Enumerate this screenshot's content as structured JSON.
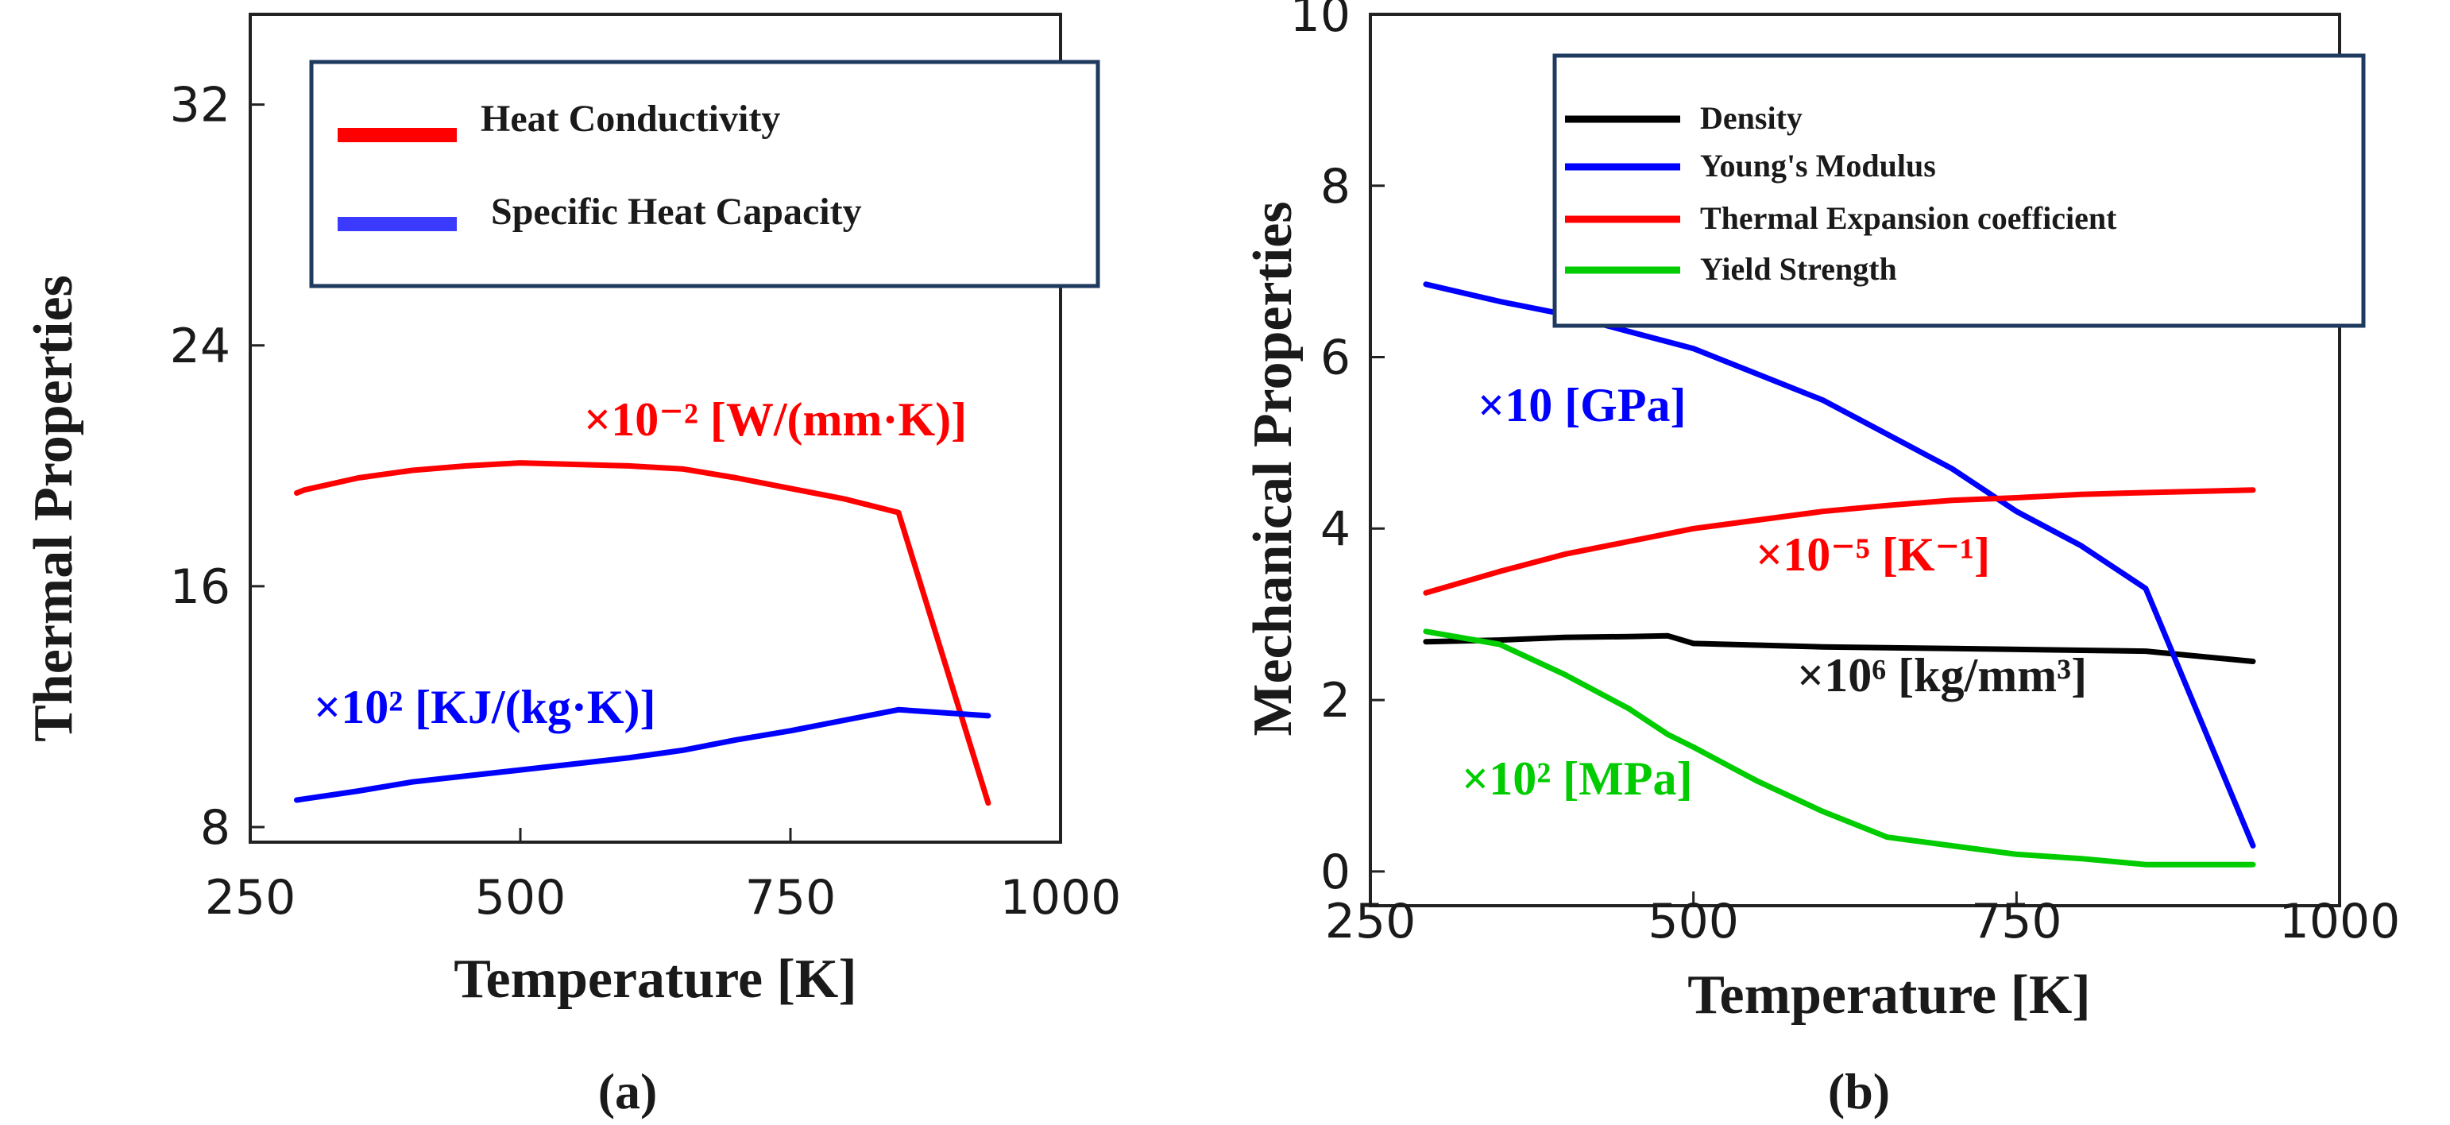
{
  "chart_data": [
    {
      "type": "line",
      "panel_label": "(a)",
      "xlabel": "Temperature [K]",
      "ylabel": "Thermal Properties",
      "xlim": [
        250,
        1000
      ],
      "ylim": [
        7.5,
        35
      ],
      "xticks": [
        250,
        500,
        750,
        1000
      ],
      "yticks": [
        8,
        16,
        24,
        32
      ],
      "legend_position": "top-right",
      "series": [
        {
          "name": "Heat Conductivity",
          "color": "#ff0000",
          "annotation": "×10⁻² [W/(mm·K)]",
          "x": [
            293,
            300,
            350,
            400,
            450,
            500,
            550,
            600,
            650,
            700,
            750,
            800,
            850,
            933
          ],
          "y": [
            19.1,
            19.2,
            19.6,
            19.85,
            20,
            20.1,
            20.05,
            20.0,
            19.9,
            19.6,
            19.25,
            18.9,
            18.45,
            8.8
          ]
        },
        {
          "name": "Specific Heat Capacity",
          "color": "#0000ff",
          "annotation": "×10² [KJ/(kg·K)]",
          "x": [
            293,
            350,
            400,
            450,
            500,
            550,
            600,
            650,
            700,
            750,
            800,
            850,
            933
          ],
          "y": [
            8.9,
            9.2,
            9.5,
            9.7,
            9.9,
            10.1,
            10.3,
            10.55,
            10.9,
            11.2,
            11.55,
            11.9,
            11.7
          ]
        }
      ]
    },
    {
      "type": "line",
      "panel_label": "(b)",
      "xlabel": "Temperature [K]",
      "ylabel": "Mechanical Properties",
      "xlim": [
        250,
        1000
      ],
      "ylim": [
        -0.4,
        10
      ],
      "xticks": [
        250,
        500,
        750,
        1000
      ],
      "yticks": [
        0,
        2,
        4,
        6,
        8,
        10
      ],
      "legend_position": "top-right",
      "series": [
        {
          "name": "Density",
          "color": "#000000",
          "annotation": "×10⁶ [kg/mm³]",
          "x": [
            293,
            350,
            400,
            450,
            480,
            500,
            600,
            700,
            800,
            850,
            933
          ],
          "y": [
            2.68,
            2.7,
            2.73,
            2.74,
            2.75,
            2.66,
            2.62,
            2.6,
            2.58,
            2.57,
            2.45
          ]
        },
        {
          "name": "Young's Modulus",
          "color": "#0000ff",
          "annotation": "×10 [GPa]",
          "x": [
            293,
            350,
            400,
            450,
            500,
            550,
            600,
            650,
            700,
            750,
            800,
            850,
            933
          ],
          "y": [
            6.85,
            6.65,
            6.5,
            6.3,
            6.1,
            5.8,
            5.5,
            5.1,
            4.7,
            4.2,
            3.8,
            3.3,
            0.3
          ]
        },
        {
          "name": "Thermal Expansion coefficient",
          "color": "#ff0000",
          "annotation": "×10⁻⁵ [K⁻¹]",
          "x": [
            293,
            350,
            400,
            450,
            500,
            550,
            600,
            650,
            700,
            750,
            800,
            850,
            933
          ],
          "y": [
            3.25,
            3.5,
            3.7,
            3.85,
            4.0,
            4.1,
            4.2,
            4.27,
            4.33,
            4.36,
            4.4,
            4.42,
            4.45
          ]
        },
        {
          "name": "Yield Strength",
          "color": "#00cc00",
          "annotation": "×10² [MPa]",
          "x": [
            293,
            350,
            400,
            450,
            480,
            500,
            550,
            600,
            650,
            700,
            750,
            800,
            850,
            933
          ],
          "y": [
            2.8,
            2.65,
            2.3,
            1.9,
            1.6,
            1.45,
            1.05,
            0.7,
            0.4,
            0.3,
            0.2,
            0.15,
            0.08,
            0.08
          ]
        }
      ]
    }
  ]
}
